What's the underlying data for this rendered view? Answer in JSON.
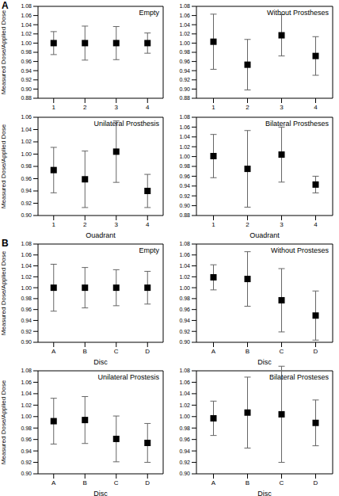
{
  "chart_data": [
    {
      "type": "scatter",
      "panel": "A",
      "title": "Empty",
      "y_label": "Measured Dose/Applied Dose",
      "categories": [
        "1",
        "2",
        "3",
        "4"
      ],
      "values": [
        1.0,
        1.0,
        1.0,
        1.0
      ],
      "errors": [
        0.025,
        0.037,
        0.036,
        0.022
      ],
      "ylim": [
        0.88,
        1.08
      ],
      "yticks": [
        0.88,
        {
          "value": 0.9,
          "label": "0.90"
        },
        0.92,
        0.94,
        0.96,
        0.98,
        {
          "value": 1,
          "label": "1.00"
        },
        1.02,
        1.04,
        1.06,
        1.08
      ],
      "color": "#000000",
      "marker": "square"
    },
    {
      "type": "scatter",
      "panel": "A",
      "title": "Without Prostheses",
      "categories": [
        "1",
        "2",
        "3",
        "4"
      ],
      "values": [
        1.003,
        0.953,
        1.017,
        0.972
      ],
      "errors": [
        0.06,
        0.055,
        0.045,
        0.042
      ],
      "ylim": [
        0.88,
        1.08
      ],
      "yticks": [
        0.88,
        {
          "value": 0.9,
          "label": "0.90"
        },
        0.92,
        0.94,
        0.96,
        0.98,
        {
          "value": 1,
          "label": "1.00"
        },
        1.02,
        1.04,
        1.06,
        1.08
      ],
      "color": "#000000",
      "marker": "square"
    },
    {
      "type": "scatter",
      "panel": "A",
      "title": "Unilateral Prosthesis",
      "x_label": "Quadrant",
      "y_label": "Measured Dose/Applied Dose",
      "categories": [
        "1",
        "2",
        "3",
        "4"
      ],
      "values": [
        0.974,
        0.959,
        1.004,
        0.94
      ],
      "errors": [
        0.037,
        0.046,
        0.05,
        0.027
      ],
      "ylim": [
        0.9,
        1.06
      ],
      "yticks": [
        {
          "value": 0.9,
          "label": "0.90"
        },
        0.92,
        0.94,
        0.96,
        0.98,
        {
          "value": 1,
          "label": "1.00"
        },
        1.02,
        1.04,
        1.06
      ],
      "color": "#000000",
      "marker": "square"
    },
    {
      "type": "scatter",
      "panel": "A",
      "title": "Bilateral Prostheses",
      "x_label": "Quadrant",
      "categories": [
        "1",
        "2",
        "3",
        "4"
      ],
      "values": [
        1.001,
        0.975,
        1.004,
        0.943
      ],
      "errors": [
        0.044,
        0.078,
        0.056,
        0.017
      ],
      "ylim": [
        0.88,
        1.08
      ],
      "yticks": [
        0.88,
        {
          "value": 0.9,
          "label": "0.90"
        },
        0.92,
        0.94,
        0.96,
        0.98,
        {
          "value": 1,
          "label": "1.00"
        },
        1.02,
        1.04,
        1.06,
        1.08
      ],
      "color": "#000000",
      "marker": "square"
    },
    {
      "type": "scatter",
      "panel": "B",
      "title": "Empty",
      "x_label": "Disc",
      "y_label": "Measured Dose/Applied Dose",
      "categories": [
        "A",
        "B",
        "C",
        "D"
      ],
      "values": [
        1.0,
        1.0,
        1.0,
        1.0
      ],
      "errors": [
        0.043,
        0.037,
        0.033,
        0.03
      ],
      "ylim": [
        0.9,
        1.08
      ],
      "yticks": [
        {
          "value": 0.9,
          "label": "0.90"
        },
        0.92,
        0.94,
        0.96,
        0.98,
        {
          "value": 1,
          "label": "1.00"
        },
        1.02,
        1.04,
        1.06,
        1.08
      ],
      "color": "#000000",
      "marker": "square"
    },
    {
      "type": "scatter",
      "panel": "B",
      "title": "Without Prosteses",
      "x_label": "Disc",
      "categories": [
        "A",
        "B",
        "C",
        "D"
      ],
      "values": [
        1.019,
        1.016,
        0.977,
        0.949
      ],
      "errors": [
        0.023,
        0.05,
        0.058,
        0.045
      ],
      "ylim": [
        0.9,
        1.08
      ],
      "yticks": [
        {
          "value": 0.9,
          "label": "0.90"
        },
        0.92,
        0.94,
        0.96,
        0.98,
        {
          "value": 1,
          "label": "1.00"
        },
        1.02,
        1.04,
        1.06,
        1.08
      ],
      "color": "#000000",
      "marker": "square"
    },
    {
      "type": "scatter",
      "panel": "B",
      "title": "Unilateral Prostesis",
      "x_label": "Disc",
      "y_label": "Measured Dose/Applied Dose",
      "categories": [
        "A",
        "B",
        "C",
        "D"
      ],
      "values": [
        0.992,
        0.994,
        0.961,
        0.954
      ],
      "errors": [
        0.04,
        0.041,
        0.04,
        0.034
      ],
      "ylim": [
        0.9,
        1.08
      ],
      "yticks": [
        {
          "value": 0.9,
          "label": "0.90"
        },
        0.92,
        0.94,
        0.96,
        0.98,
        {
          "value": 1,
          "label": "1.00"
        },
        1.02,
        1.04,
        1.06,
        1.08
      ],
      "color": "#000000",
      "marker": "square"
    },
    {
      "type": "scatter",
      "panel": "B",
      "title": "Bilateral Prosteses",
      "x_label": "Disc",
      "categories": [
        "A",
        "B",
        "C",
        "D"
      ],
      "values": [
        0.997,
        1.007,
        1.004,
        0.989
      ],
      "errors": [
        0.03,
        0.062,
        0.084,
        0.04
      ],
      "ylim": [
        0.9,
        1.08
      ],
      "yticks": [
        {
          "value": 0.9,
          "label": "0.90"
        },
        0.92,
        0.94,
        0.96,
        0.98,
        {
          "value": 1,
          "label": "1.00"
        },
        1.02,
        1.04,
        1.06,
        1.08
      ],
      "color": "#000000",
      "marker": "square"
    }
  ]
}
